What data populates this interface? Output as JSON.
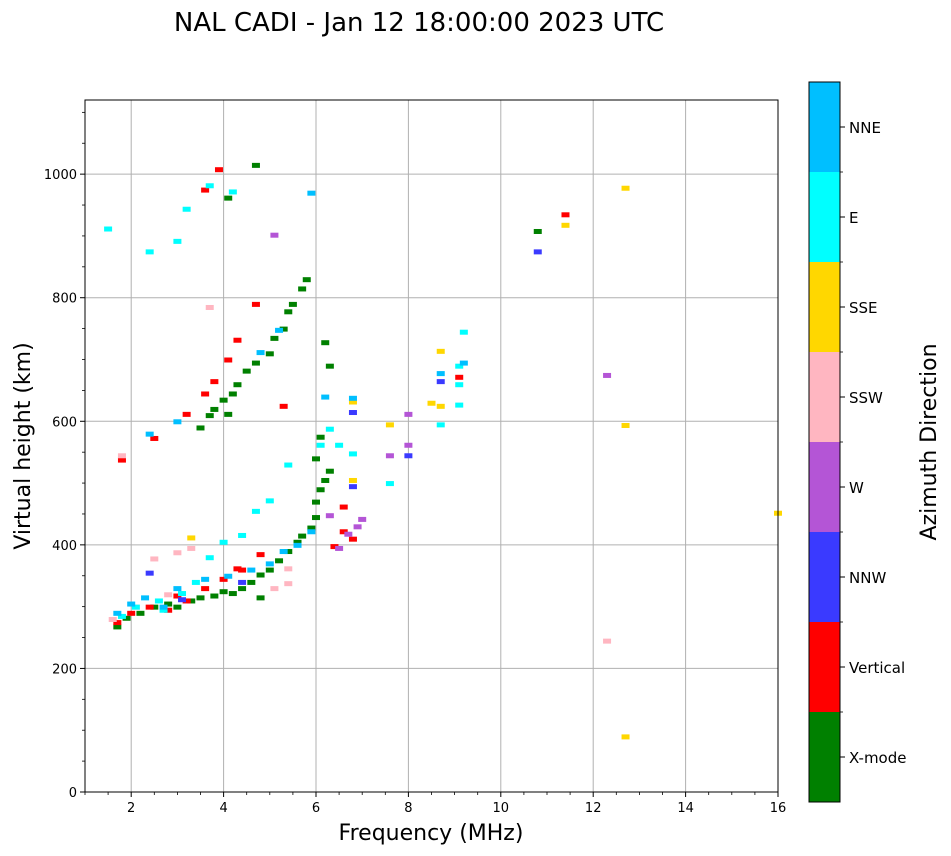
{
  "chart_data": {
    "type": "scatter",
    "title": "NAL CADI - Jan 12 18:00:00 2023 UTC",
    "xlabel": "Frequency (MHz)",
    "ylabel": "Virtual height (km)",
    "xlim": [
      1,
      16
    ],
    "ylim": [
      0,
      1120
    ],
    "xticks": [
      2,
      4,
      6,
      8,
      10,
      12,
      14,
      16
    ],
    "xtick_labels": [
      "2",
      "4",
      "6",
      "8",
      "10",
      "12",
      "14",
      "16"
    ],
    "yticks": [
      0,
      200,
      400,
      600,
      800,
      1000
    ],
    "ytick_labels": [
      "0",
      "200",
      "400",
      "600",
      "800",
      "1000"
    ],
    "grid": true,
    "colorbar": {
      "label": "Azimuth Direction",
      "categories": [
        "X-mode",
        "Vertical",
        "NNW",
        "W",
        "SSW",
        "SSE",
        "E",
        "NNE"
      ],
      "colors": [
        "#008000",
        "#ff0000",
        "#3a3aff",
        "#b455d6",
        "#ffb6c1",
        "#ffd700",
        "#00ffff",
        "#00bfff"
      ]
    },
    "series": [
      {
        "name": "X-mode",
        "color": "#008000",
        "points": [
          [
            1.7,
            268
          ],
          [
            1.9,
            282
          ],
          [
            2.2,
            290
          ],
          [
            2.5,
            300
          ],
          [
            2.8,
            305
          ],
          [
            3.0,
            300
          ],
          [
            3.3,
            310
          ],
          [
            3.5,
            315
          ],
          [
            3.8,
            318
          ],
          [
            4.0,
            325
          ],
          [
            4.2,
            322
          ],
          [
            4.4,
            330
          ],
          [
            4.6,
            340
          ],
          [
            4.8,
            352
          ],
          [
            5.0,
            360
          ],
          [
            5.2,
            375
          ],
          [
            5.4,
            390
          ],
          [
            5.6,
            405
          ],
          [
            5.7,
            415
          ],
          [
            5.9,
            428
          ],
          [
            6.0,
            445
          ],
          [
            6.0,
            470
          ],
          [
            6.1,
            490
          ],
          [
            6.2,
            505
          ],
          [
            6.3,
            520
          ],
          [
            6.0,
            540
          ],
          [
            6.1,
            575
          ],
          [
            4.1,
            612
          ],
          [
            3.8,
            620
          ],
          [
            4.0,
            635
          ],
          [
            4.2,
            645
          ],
          [
            4.3,
            660
          ],
          [
            4.5,
            682
          ],
          [
            4.7,
            695
          ],
          [
            5.0,
            710
          ],
          [
            5.1,
            735
          ],
          [
            5.3,
            750
          ],
          [
            5.4,
            778
          ],
          [
            5.5,
            790
          ],
          [
            5.7,
            815
          ],
          [
            5.8,
            830
          ],
          [
            4.1,
            962
          ],
          [
            4.7,
            1015
          ],
          [
            6.2,
            728
          ],
          [
            6.3,
            690
          ],
          [
            10.8,
            908
          ],
          [
            3.5,
            590
          ],
          [
            3.7,
            610
          ],
          [
            4.8,
            315
          ]
        ]
      },
      {
        "name": "Vertical",
        "color": "#ff0000",
        "points": [
          [
            1.8,
            538
          ],
          [
            2.5,
            573
          ],
          [
            3.2,
            612
          ],
          [
            3.6,
            645
          ],
          [
            3.8,
            665
          ],
          [
            4.1,
            700
          ],
          [
            4.3,
            732
          ],
          [
            4.7,
            790
          ],
          [
            5.3,
            625
          ],
          [
            3.6,
            975
          ],
          [
            3.9,
            1008
          ],
          [
            1.7,
            275
          ],
          [
            2.0,
            290
          ],
          [
            2.4,
            300
          ],
          [
            2.8,
            295
          ],
          [
            3.2,
            310
          ],
          [
            3.6,
            330
          ],
          [
            4.0,
            345
          ],
          [
            4.3,
            362
          ],
          [
            4.8,
            385
          ],
          [
            6.4,
            398
          ],
          [
            6.6,
            422
          ],
          [
            6.6,
            462
          ],
          [
            6.8,
            410
          ],
          [
            9.1,
            672
          ],
          [
            11.4,
            935
          ],
          [
            4.4,
            360
          ],
          [
            3.0,
            318
          ]
        ]
      },
      {
        "name": "NNW",
        "color": "#3a3aff",
        "points": [
          [
            2.4,
            355
          ],
          [
            6.8,
            495
          ],
          [
            6.8,
            615
          ],
          [
            8.0,
            545
          ],
          [
            8.7,
            665
          ],
          [
            10.8,
            875
          ],
          [
            4.4,
            340
          ],
          [
            3.1,
            312
          ]
        ]
      },
      {
        "name": "W",
        "color": "#b455d6",
        "points": [
          [
            5.1,
            902
          ],
          [
            6.5,
            395
          ],
          [
            6.7,
            418
          ],
          [
            6.9,
            430
          ],
          [
            7.0,
            442
          ],
          [
            7.6,
            545
          ],
          [
            8.0,
            562
          ],
          [
            8.0,
            612
          ],
          [
            12.3,
            675
          ],
          [
            6.3,
            448
          ]
        ]
      },
      {
        "name": "SSW",
        "color": "#ffb6c1",
        "points": [
          [
            1.6,
            280
          ],
          [
            2.1,
            300
          ],
          [
            2.5,
            378
          ],
          [
            3.0,
            388
          ],
          [
            3.3,
            395
          ],
          [
            5.1,
            330
          ],
          [
            5.4,
            338
          ],
          [
            5.4,
            362
          ],
          [
            3.7,
            785
          ],
          [
            12.3,
            245
          ],
          [
            2.8,
            320
          ],
          [
            1.8,
            545
          ]
        ]
      },
      {
        "name": "SSE",
        "color": "#ffd700",
        "points": [
          [
            6.8,
            505
          ],
          [
            6.8,
            632
          ],
          [
            7.6,
            595
          ],
          [
            8.5,
            630
          ],
          [
            8.7,
            714
          ],
          [
            8.7,
            625
          ],
          [
            11.4,
            918
          ],
          [
            12.7,
            978
          ],
          [
            12.7,
            594
          ],
          [
            12.7,
            90
          ],
          [
            16.0,
            452
          ],
          [
            3.3,
            412
          ]
        ]
      },
      {
        "name": "E",
        "color": "#00ffff",
        "points": [
          [
            1.5,
            912
          ],
          [
            2.4,
            875
          ],
          [
            3.0,
            892
          ],
          [
            3.2,
            944
          ],
          [
            3.7,
            982
          ],
          [
            4.2,
            972
          ],
          [
            1.8,
            285
          ],
          [
            2.1,
            300
          ],
          [
            2.6,
            310
          ],
          [
            3.1,
            322
          ],
          [
            3.4,
            340
          ],
          [
            3.7,
            380
          ],
          [
            4.0,
            405
          ],
          [
            4.4,
            416
          ],
          [
            4.7,
            455
          ],
          [
            5.0,
            472
          ],
          [
            5.4,
            530
          ],
          [
            6.1,
            562
          ],
          [
            6.5,
            562
          ],
          [
            6.8,
            548
          ],
          [
            7.6,
            500
          ],
          [
            8.7,
            595
          ],
          [
            9.1,
            627
          ],
          [
            9.1,
            660
          ],
          [
            9.1,
            690
          ],
          [
            9.2,
            745
          ],
          [
            6.3,
            588
          ],
          [
            2.7,
            295
          ]
        ]
      },
      {
        "name": "NNE",
        "color": "#00bfff",
        "points": [
          [
            1.7,
            290
          ],
          [
            2.0,
            305
          ],
          [
            2.3,
            315
          ],
          [
            2.7,
            300
          ],
          [
            3.0,
            330
          ],
          [
            3.6,
            345
          ],
          [
            4.1,
            350
          ],
          [
            4.6,
            360
          ],
          [
            5.0,
            370
          ],
          [
            5.3,
            390
          ],
          [
            5.6,
            400
          ],
          [
            5.9,
            422
          ],
          [
            6.2,
            640
          ],
          [
            6.8,
            638
          ],
          [
            8.7,
            678
          ],
          [
            9.2,
            695
          ],
          [
            4.8,
            712
          ],
          [
            5.2,
            748
          ],
          [
            5.9,
            970
          ],
          [
            2.4,
            580
          ],
          [
            3.0,
            600
          ]
        ]
      }
    ]
  }
}
